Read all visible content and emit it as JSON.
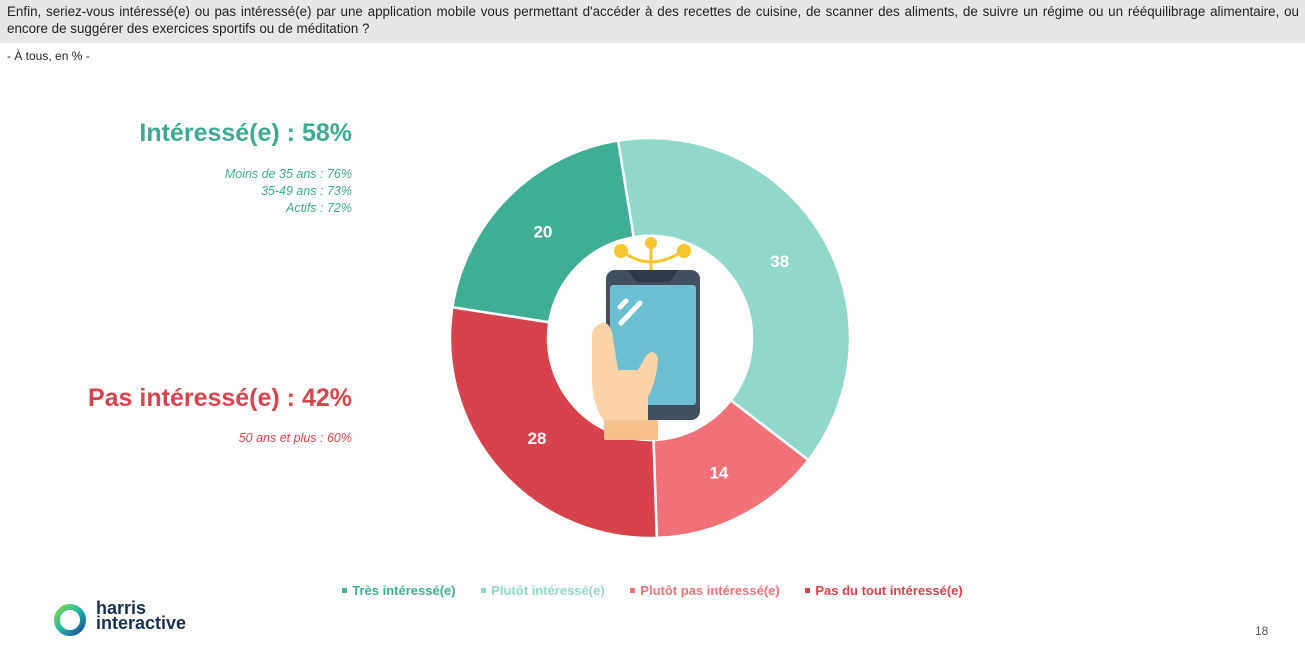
{
  "question": "Enfin, seriez-vous intéressé(e) ou pas intéressé(e) par une application mobile vous permettant d'accéder à des recettes de cuisine, de scanner des aliments, de suivre un régime ou un rééquilibrage alimentaire, ou encore de suggérer des exercices sportifs ou de méditation ?",
  "base": "- À tous, en % -",
  "summaries": {
    "interested": {
      "label": "Intéressé(e) : 58%",
      "details": [
        "Moins de 35 ans : 76%",
        "35-49 ans : 73%",
        "Actifs : 72%"
      ],
      "color": "#3dab93"
    },
    "not_interested": {
      "label": "Pas intéressé(e) : 42%",
      "details": [
        "50 ans et plus : 60%"
      ],
      "color": "#d8434c"
    }
  },
  "chart_data": {
    "type": "pie",
    "style": "donut",
    "center_icon": "smartphone-in-hand-icon",
    "series": [
      {
        "name": "Très intéressé(e)",
        "value": 20,
        "color": "#3fae94"
      },
      {
        "name": "Plutôt intéressé(e)",
        "value": 38,
        "color": "#92d8ca"
      },
      {
        "name": "Plutôt pas intéressé(e)",
        "value": 14,
        "color": "#f07177"
      },
      {
        "name": "Pas du tout intéressé(e)",
        "value": 28,
        "color": "#d6434b"
      }
    ],
    "data_labels": [
      "20",
      "38",
      "14",
      "28"
    ],
    "legend_position": "bottom"
  },
  "logo": {
    "line1": "harris",
    "line2": "interactive"
  },
  "page_number": "18"
}
